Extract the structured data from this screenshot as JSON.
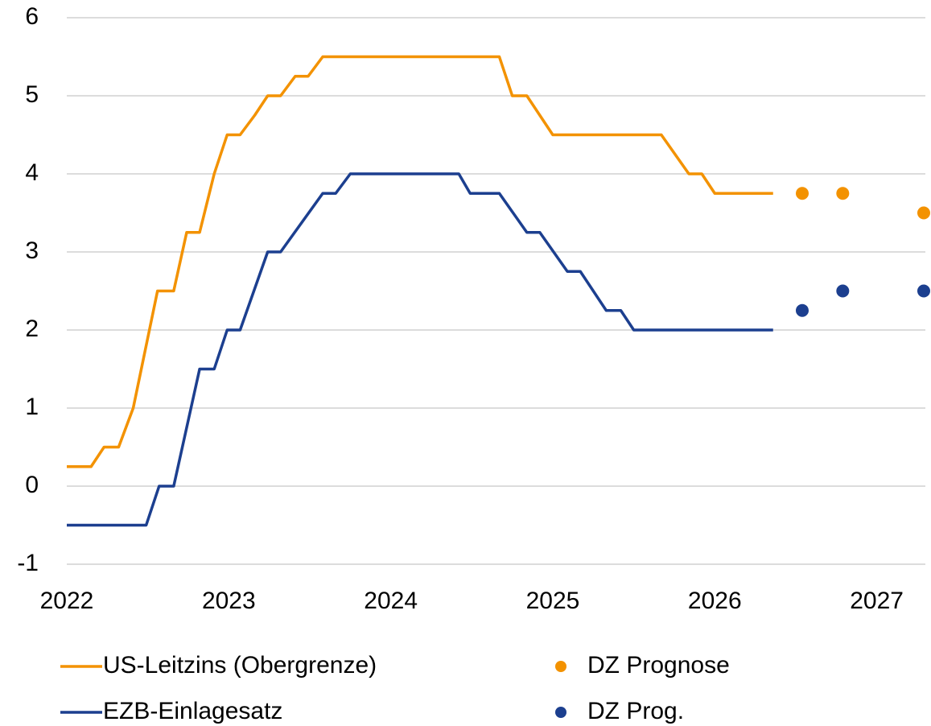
{
  "chart_data": {
    "type": "line",
    "xlim": [
      2022,
      2027.3
    ],
    "xticks": [
      2022,
      2023,
      2024,
      2025,
      2026,
      2027
    ],
    "ylim": [
      -1,
      6
    ],
    "yticks": [
      -1,
      0,
      1,
      2,
      3,
      4,
      5,
      6
    ],
    "grid": true,
    "legend": "bottom",
    "series": [
      {
        "name": "US-Leitzins (Obergrenze)",
        "type": "line",
        "color": "#f39200",
        "x": [
          2022.0,
          2022.15,
          2022.23,
          2022.32,
          2022.41,
          2022.56,
          2022.66,
          2022.74,
          2022.82,
          2022.91,
          2022.99,
          2023.07,
          2023.16,
          2023.24,
          2023.32,
          2023.41,
          2023.49,
          2023.58,
          2024.67,
          2024.75,
          2024.84,
          2025.0,
          2025.67,
          2025.84,
          2025.92,
          2026.0,
          2026.36
        ],
        "values": [
          0.25,
          0.25,
          0.5,
          0.5,
          1.0,
          2.5,
          2.5,
          3.25,
          3.25,
          4.0,
          4.5,
          4.5,
          4.75,
          5.0,
          5.0,
          5.25,
          5.25,
          5.5,
          5.5,
          5.0,
          5.0,
          4.5,
          4.5,
          4.0,
          4.0,
          3.75,
          3.75
        ]
      },
      {
        "name": "EZB-Einlagesatz",
        "type": "line",
        "color": "#1c3f8f",
        "x": [
          2022.0,
          2022.49,
          2022.57,
          2022.66,
          2022.82,
          2022.91,
          2022.99,
          2023.07,
          2023.24,
          2023.32,
          2023.58,
          2023.66,
          2023.75,
          2024.42,
          2024.49,
          2024.67,
          2024.84,
          2024.92,
          2025.09,
          2025.17,
          2025.33,
          2025.42,
          2025.5,
          2026.36
        ],
        "values": [
          -0.5,
          -0.5,
          0,
          0,
          1.5,
          1.5,
          2.0,
          2.0,
          3.0,
          3.0,
          3.75,
          3.75,
          4.0,
          4.0,
          3.75,
          3.75,
          3.25,
          3.25,
          2.75,
          2.75,
          2.25,
          2.25,
          2.0,
          2.0
        ]
      },
      {
        "name": "DZ Prognose",
        "type": "scatter",
        "color": "#f39200",
        "x": [
          2026.54,
          2026.79,
          2027.29
        ],
        "values": [
          3.75,
          3.75,
          3.5
        ]
      },
      {
        "name": "DZ Prog.",
        "type": "scatter",
        "color": "#1c3f8f",
        "x": [
          2026.54,
          2026.79,
          2027.29
        ],
        "values": [
          2.25,
          2.5,
          2.5
        ]
      }
    ]
  }
}
